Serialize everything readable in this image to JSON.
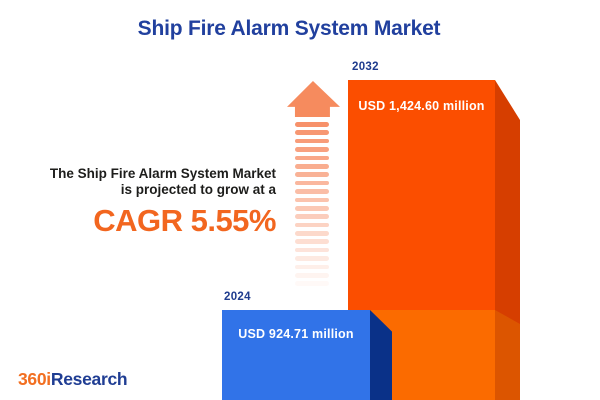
{
  "title": "Ship Fire Alarm System Market",
  "annotation": {
    "line1": "The Ship Fire Alarm System Market",
    "line2": "is projected to grow at a",
    "cagr": "CAGR 5.55%"
  },
  "bars": [
    {
      "year": "2024",
      "value_label": "USD 924.71 million"
    },
    {
      "year": "2032",
      "value_label": "USD 1,424.60 million"
    }
  ],
  "logo": {
    "prefix": "360i",
    "suffix": "Research"
  },
  "colors": {
    "title_navy": "#21409E",
    "year_label_navy": "#1F3C8E",
    "bar_2024_face": "#3173E8",
    "bar_2024_side": "#0A3188",
    "bar_2032_face_upper": "#FB4E00",
    "bar_2032_face_lower": "#FB6B00",
    "bar_2032_side_upper": "#D63E00",
    "bar_2032_side_lower": "#DC5500",
    "arrow_salmon": "#F7916A",
    "cagr_orange": "#F2661F",
    "body_text": "#1D1D1B",
    "logo_orange": "#F26F21",
    "logo_navy": "#1F3D93"
  },
  "chart_data": {
    "type": "bar",
    "title": "Ship Fire Alarm System Market",
    "categories": [
      "2024",
      "2032"
    ],
    "values": [
      924.71,
      1424.6
    ],
    "unit": "USD million",
    "value_labels": [
      "USD 924.71 million",
      "USD 1,424.60 million"
    ],
    "cagr_percent": 5.55,
    "annotation": "The Ship Fire Alarm System Market is projected to grow at a CAGR 5.55%",
    "bar_colors": [
      "#3173E8",
      "#FB4E00"
    ],
    "axes": "none",
    "grid": false,
    "legend": "none"
  }
}
